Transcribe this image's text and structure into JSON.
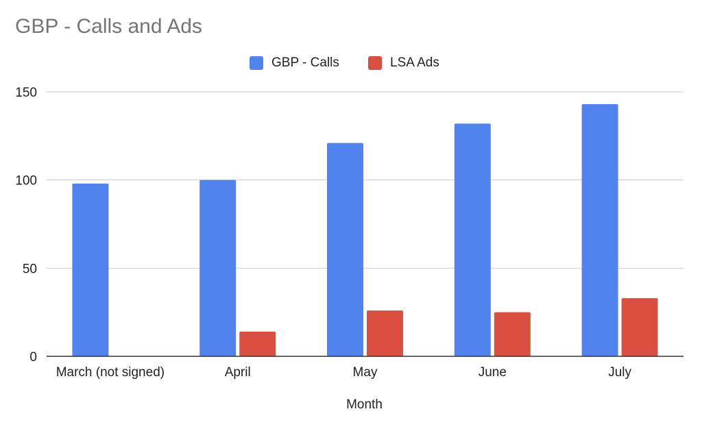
{
  "chart_data": {
    "type": "bar",
    "title": "GBP - Calls and Ads",
    "xlabel": "Month",
    "ylabel": "",
    "categories": [
      "March (not signed)",
      "April",
      "May",
      "June",
      "July"
    ],
    "series": [
      {
        "name": "GBP - Calls",
        "color": "#5083ED",
        "values": [
          98,
          100,
          121,
          132,
          143
        ]
      },
      {
        "name": "LSA Ads",
        "color": "#D95040",
        "values": [
          null,
          14,
          26,
          25,
          33
        ]
      }
    ],
    "ylim": [
      0,
      150
    ],
    "yticks": [
      0,
      50,
      100,
      150
    ],
    "grid": true,
    "legend": "top"
  }
}
